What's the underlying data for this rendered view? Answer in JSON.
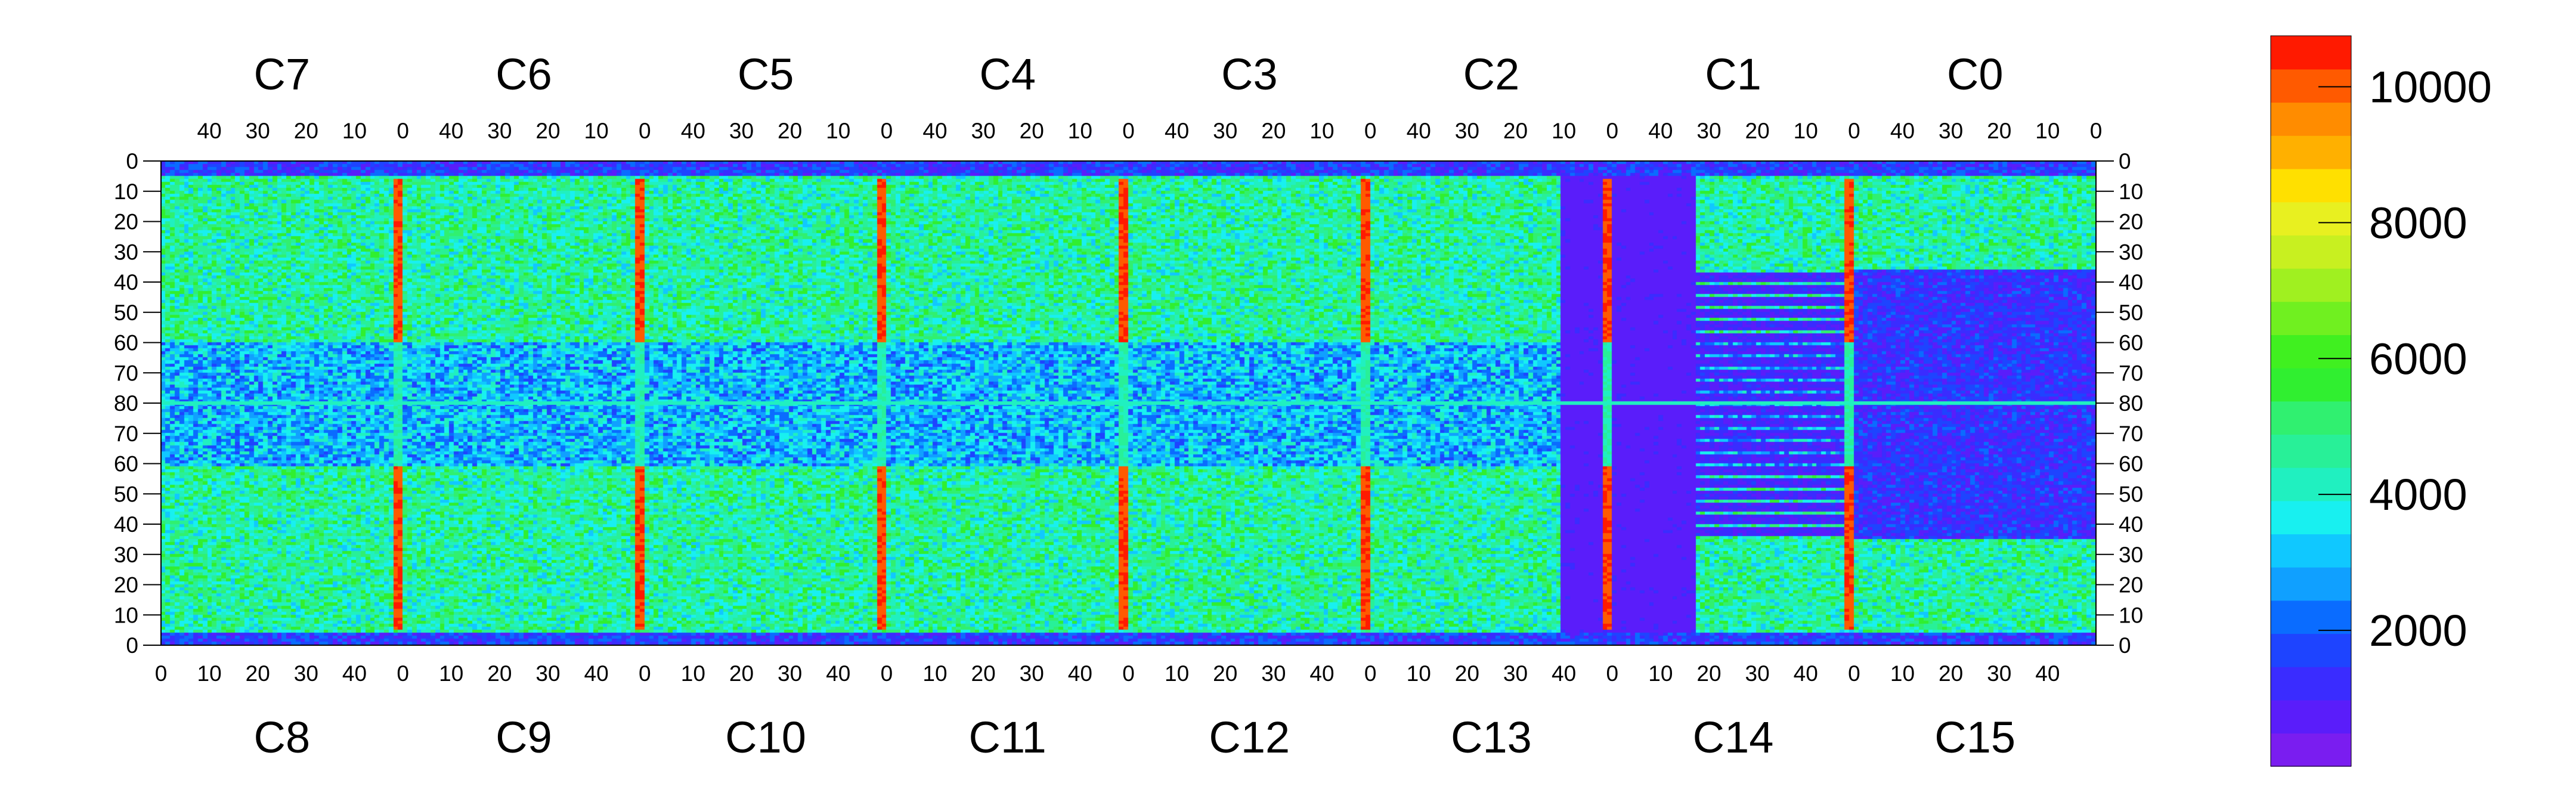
{
  "chart_data": {
    "type": "heatmap",
    "title": "",
    "xlabel": "",
    "ylabel": "",
    "top_chips": [
      "C7",
      "C6",
      "C5",
      "C4",
      "C3",
      "C2",
      "C1",
      "C0"
    ],
    "bottom_chips": [
      "C8",
      "C9",
      "C10",
      "C11",
      "C12",
      "C13",
      "C14",
      "C15"
    ],
    "top_x_ticks": [
      "40",
      "30",
      "20",
      "10",
      "0"
    ],
    "bottom_x_ticks": [
      "0",
      "10",
      "20",
      "30",
      "40"
    ],
    "y_ticks_left": [
      "0",
      "10",
      "20",
      "30",
      "40",
      "50",
      "60",
      "70",
      "80",
      "70",
      "60",
      "50",
      "40",
      "30",
      "20",
      "10",
      "0"
    ],
    "y_ticks_right": [
      "0",
      "10",
      "20",
      "30",
      "40",
      "50",
      "60",
      "70",
      "80",
      "70",
      "60",
      "50",
      "40",
      "30",
      "20",
      "10",
      "0"
    ],
    "chip_columns": 52,
    "chip_rows_per_half": 80,
    "colorbar": {
      "min": 0,
      "max": 10750,
      "ticks": [
        2000,
        4000,
        6000,
        8000,
        10000
      ],
      "tick_labels": [
        "2000",
        "4000",
        "6000",
        "8000",
        "10000"
      ],
      "colors": [
        "#7a1df0",
        "#5a1dfa",
        "#3a2cff",
        "#1e44ff",
        "#0a6cff",
        "#10a0ff",
        "#10c8ff",
        "#18f0f0",
        "#20f0c0",
        "#28f098",
        "#30f070",
        "#30ef30",
        "#40f020",
        "#70f020",
        "#a0f020",
        "#c8f020",
        "#e8f020",
        "#ffe000",
        "#ffb000",
        "#ff8c00",
        "#ff5a00",
        "#ff1a00"
      ]
    },
    "description_levels": {
      "background_high": 4500,
      "background_low": 3000,
      "inactive_region": 600,
      "hot_column": 10200
    }
  }
}
